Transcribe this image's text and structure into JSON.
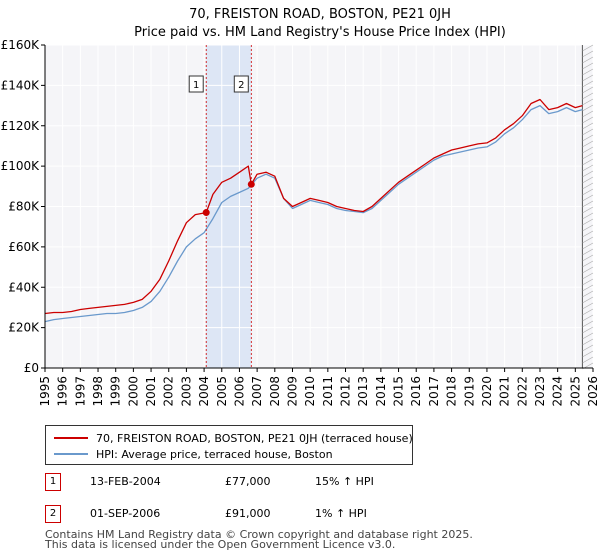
{
  "chart_data": {
    "type": "line",
    "title": "70, FREISTON ROAD, BOSTON, PE21 0JH",
    "subtitle": "Price paid vs. HM Land Registry's House Price Index (HPI)",
    "xlim": [
      1995,
      2026
    ],
    "ylim": [
      0,
      160000
    ],
    "x_ticks": [
      "1995",
      "1996",
      "1997",
      "1998",
      "1999",
      "2000",
      "2001",
      "2002",
      "2003",
      "2004",
      "2005",
      "2006",
      "2007",
      "2008",
      "2009",
      "2010",
      "2011",
      "2012",
      "2013",
      "2014",
      "2015",
      "2016",
      "2017",
      "2018",
      "2019",
      "2020",
      "2021",
      "2022",
      "2023",
      "2024",
      "2025",
      "2026"
    ],
    "y_ticks": [
      {
        "value": 0,
        "label": "£0"
      },
      {
        "value": 20000,
        "label": "£20K"
      },
      {
        "value": 40000,
        "label": "£40K"
      },
      {
        "value": 60000,
        "label": "£60K"
      },
      {
        "value": 80000,
        "label": "£80K"
      },
      {
        "value": 100000,
        "label": "£100K"
      },
      {
        "value": 120000,
        "label": "£120K"
      },
      {
        "value": 140000,
        "label": "£140K"
      },
      {
        "value": 160000,
        "label": "£160K"
      }
    ],
    "grid": true,
    "series": [
      {
        "name": "70, FREISTON ROAD, BOSTON, PE21 0JH (terraced house)",
        "color": "#cc0000",
        "x": [
          1995.0,
          1995.5,
          1996.0,
          1996.5,
          1997.0,
          1997.5,
          1998.0,
          1998.5,
          1999.0,
          1999.5,
          2000.0,
          2000.5,
          2001.0,
          2001.5,
          2002.0,
          2002.5,
          2003.0,
          2003.5,
          2004.12,
          2004.5,
          2005.0,
          2005.5,
          2006.0,
          2006.5,
          2006.67,
          2007.0,
          2007.5,
          2008.0,
          2008.5,
          2009.0,
          2009.5,
          2010.0,
          2010.5,
          2011.0,
          2011.5,
          2012.0,
          2012.5,
          2013.0,
          2013.5,
          2014.0,
          2014.5,
          2015.0,
          2015.5,
          2016.0,
          2016.5,
          2017.0,
          2017.5,
          2018.0,
          2018.5,
          2019.0,
          2019.5,
          2020.0,
          2020.5,
          2021.0,
          2021.5,
          2022.0,
          2022.5,
          2023.0,
          2023.5,
          2024.0,
          2024.5,
          2025.0,
          2025.4
        ],
        "y": [
          27000,
          27500,
          27500,
          28000,
          29000,
          29500,
          30000,
          30500,
          31000,
          31500,
          32500,
          34000,
          38000,
          44000,
          53000,
          63000,
          72000,
          76000,
          77000,
          86000,
          92000,
          94000,
          97000,
          100000,
          91000,
          96000,
          97000,
          95000,
          84000,
          80000,
          82000,
          84000,
          83000,
          82000,
          80000,
          79000,
          78000,
          77500,
          80000,
          84000,
          88000,
          92000,
          95000,
          98000,
          101000,
          104000,
          106000,
          108000,
          109000,
          110000,
          111000,
          111500,
          114000,
          118000,
          121000,
          125000,
          131000,
          133000,
          128000,
          129000,
          131000,
          129000,
          130000
        ]
      },
      {
        "name": "HPI: Average price, terraced house, Boston",
        "color": "#6a99cc",
        "x": [
          1995.0,
          1995.5,
          1996.0,
          1996.5,
          1997.0,
          1997.5,
          1998.0,
          1998.5,
          1999.0,
          1999.5,
          2000.0,
          2000.5,
          2001.0,
          2001.5,
          2002.0,
          2002.5,
          2003.0,
          2003.5,
          2004.0,
          2004.5,
          2005.0,
          2005.5,
          2006.0,
          2006.5,
          2007.0,
          2007.5,
          2008.0,
          2008.5,
          2009.0,
          2009.5,
          2010.0,
          2010.5,
          2011.0,
          2011.5,
          2012.0,
          2012.5,
          2013.0,
          2013.5,
          2014.0,
          2014.5,
          2015.0,
          2015.5,
          2016.0,
          2016.5,
          2017.0,
          2017.5,
          2018.0,
          2018.5,
          2019.0,
          2019.5,
          2020.0,
          2020.5,
          2021.0,
          2021.5,
          2022.0,
          2022.5,
          2023.0,
          2023.5,
          2024.0,
          2024.5,
          2025.0,
          2025.4
        ],
        "y": [
          23000,
          24000,
          24500,
          25000,
          25500,
          26000,
          26500,
          27000,
          27000,
          27500,
          28500,
          30000,
          33000,
          38000,
          45000,
          53000,
          60000,
          64000,
          67000,
          74000,
          82000,
          85000,
          87000,
          89000,
          94000,
          96000,
          94000,
          84000,
          79000,
          81000,
          83000,
          82000,
          81000,
          79000,
          78000,
          77500,
          77000,
          79000,
          83000,
          87000,
          91000,
          94000,
          97000,
          100000,
          103000,
          105000,
          106000,
          107000,
          108000,
          109000,
          109500,
          112000,
          116000,
          119000,
          123000,
          128000,
          130000,
          126000,
          127000,
          129000,
          127000,
          128000
        ]
      }
    ],
    "annotations": [
      {
        "label": "1",
        "date": "13-FEB-2004",
        "x": 2004.12,
        "price": 77000,
        "price_text": "£77,000",
        "hpi_text": "15% ↑ HPI"
      },
      {
        "label": "2",
        "date": "01-SEP-2006",
        "x": 2006.67,
        "price": 91000,
        "price_text": "£91,000",
        "hpi_text": "1% ↑ HPI"
      }
    ],
    "forecast_start": 2025.4
  },
  "footer": {
    "line1": "Contains HM Land Registry data © Crown copyright and database right 2025.",
    "line2": "This data is licensed under the Open Government Licence v3.0."
  }
}
